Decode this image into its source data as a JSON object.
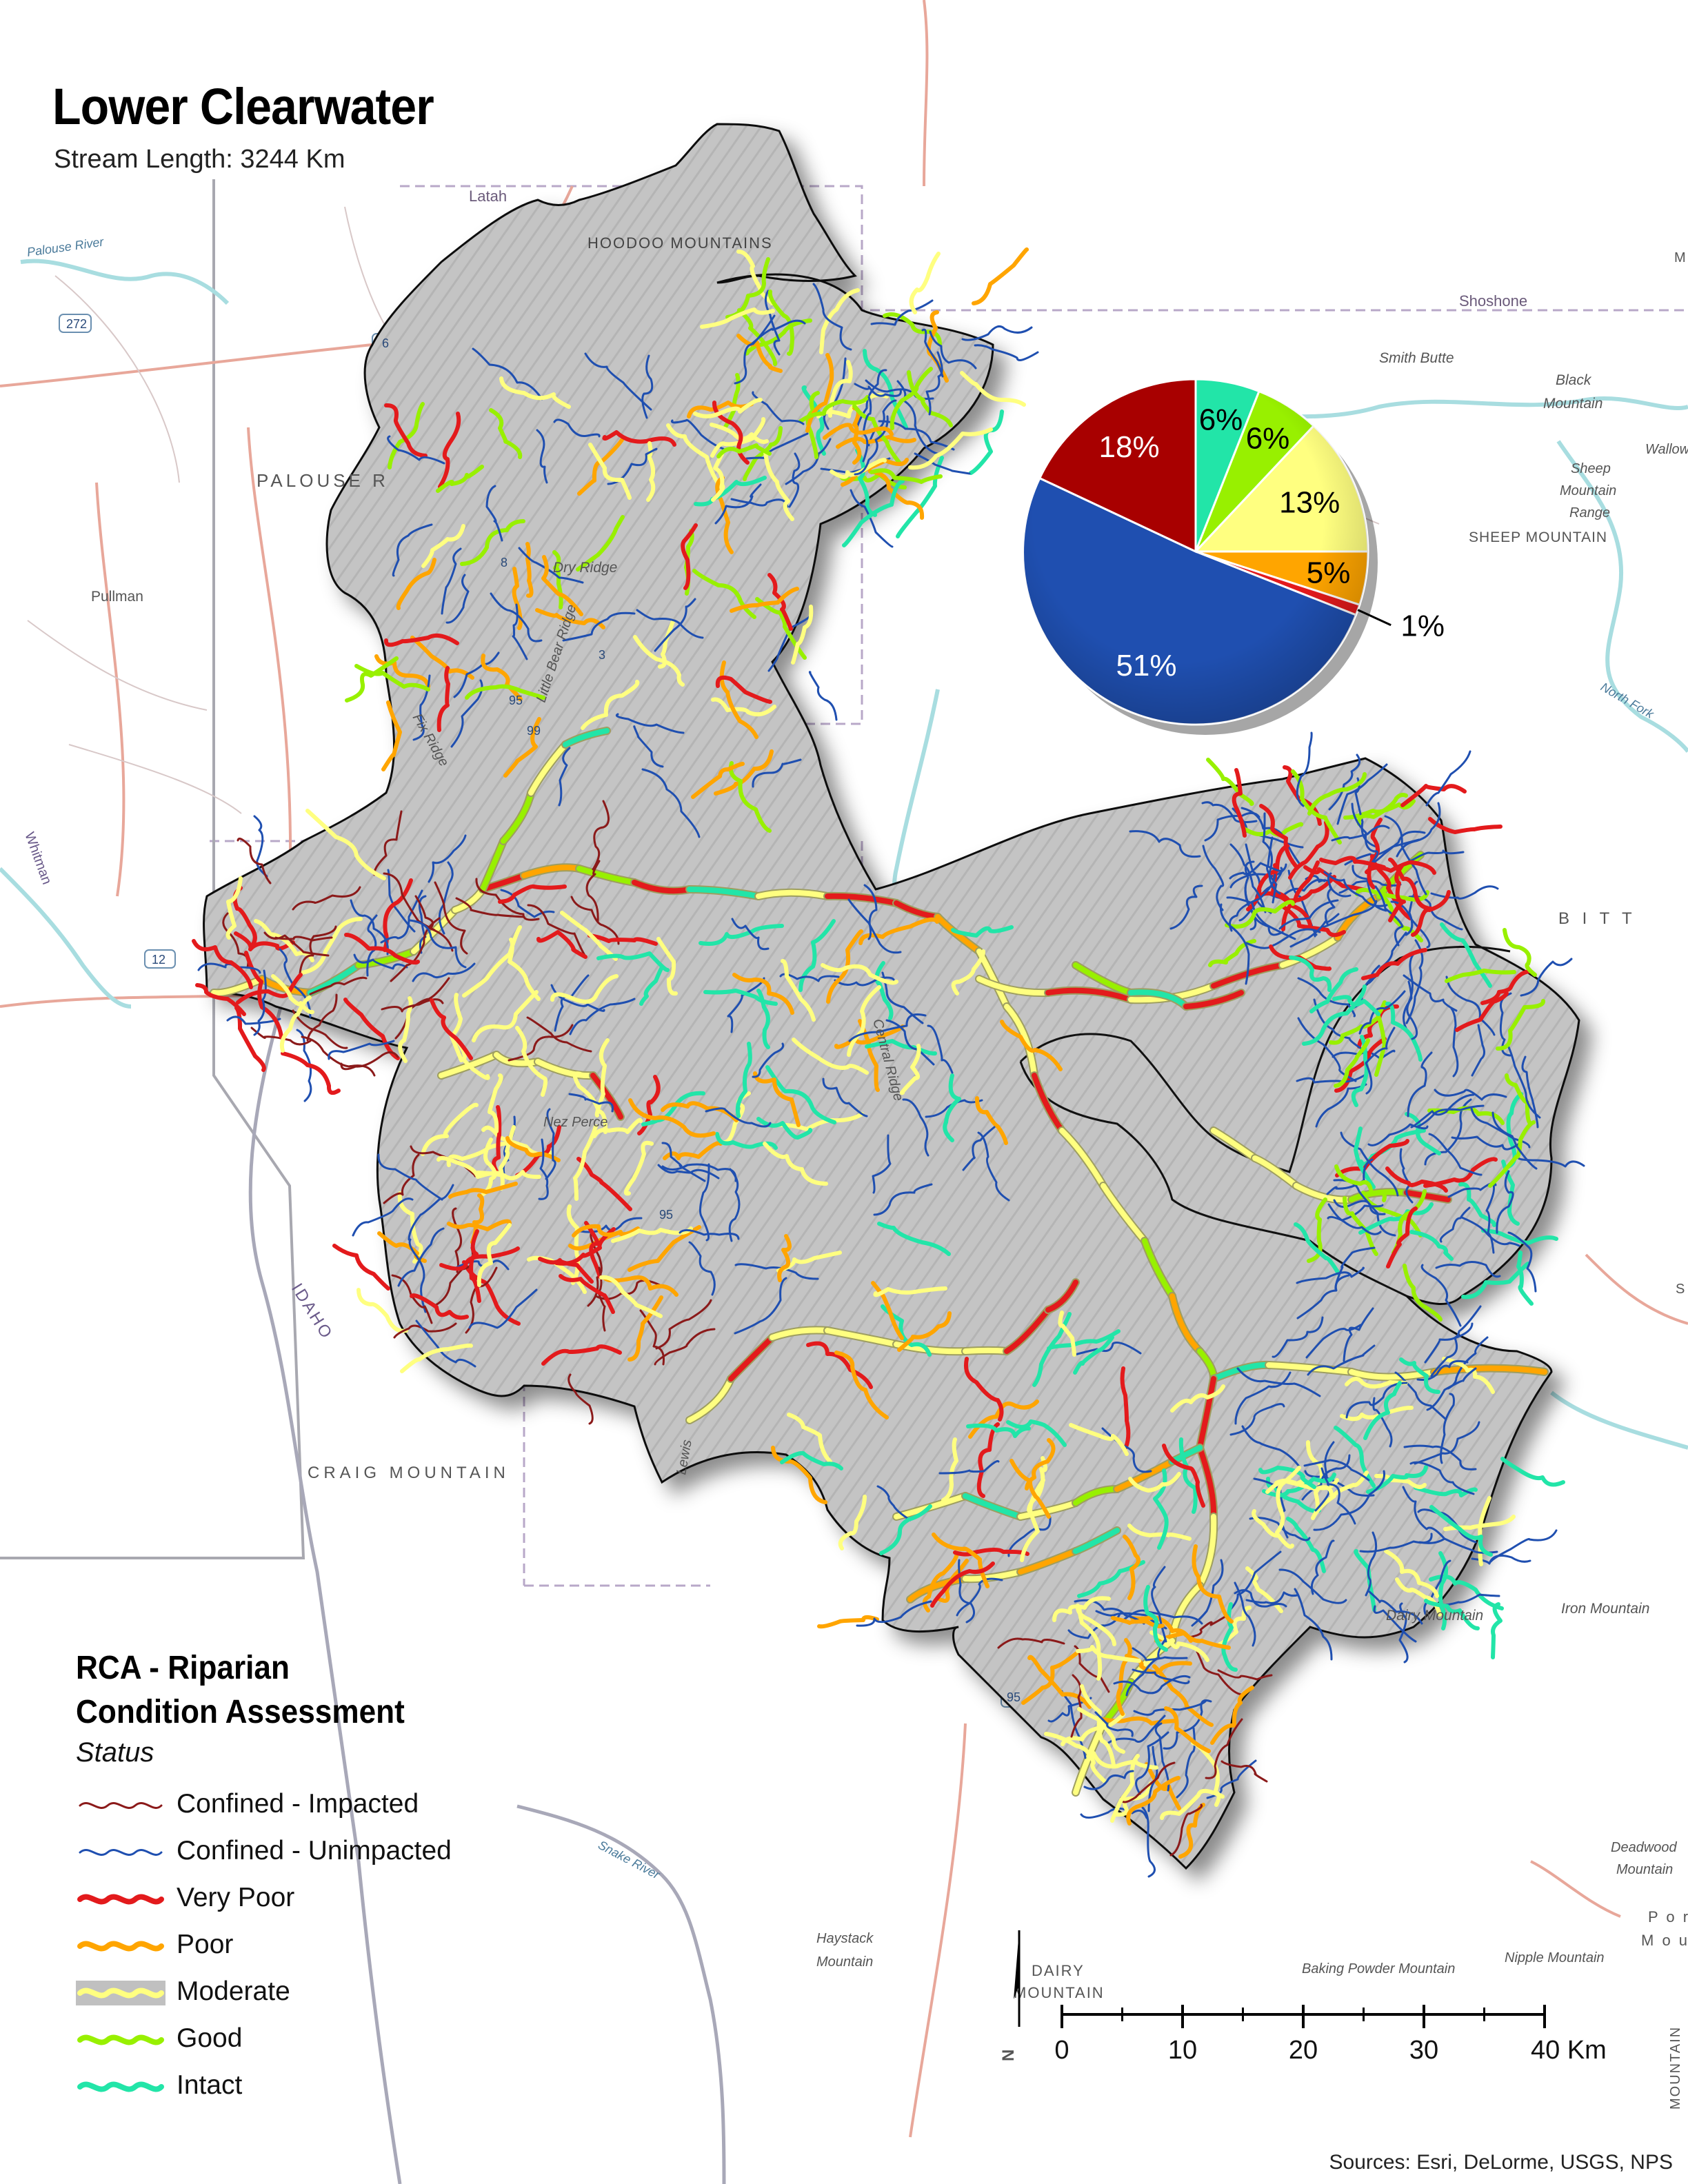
{
  "header": {
    "title": "Lower Clearwater",
    "subtitle": "Stream Length: 3244 Km"
  },
  "colors": {
    "confined_impacted": "#8b1a1a",
    "confined_unimpacted": "#1f4fb0",
    "very_poor": "#e31a1c",
    "poor": "#ffa500",
    "moderate": "#ffff80",
    "good": "#98f000",
    "intact": "#22e5a8",
    "terrain": "#c8c8c8",
    "river_blue": "#a8dde0",
    "road_red": "#e8a79a"
  },
  "map_labels": [
    {
      "id": "latah",
      "text": "Latah"
    },
    {
      "id": "hoodoo",
      "text": "HOODOO MOUNTAINS"
    },
    {
      "id": "shoshone",
      "text": "Shoshone"
    },
    {
      "id": "smith_butte",
      "text": "Smith Butte"
    },
    {
      "id": "black_mtn_1",
      "text": "Black"
    },
    {
      "id": "black_mtn_2",
      "text": "Mountain"
    },
    {
      "id": "sheep_1",
      "text": "Sheep"
    },
    {
      "id": "sheep_2",
      "text": "Mountain"
    },
    {
      "id": "sheep_3",
      "text": "Range"
    },
    {
      "id": "sheep_mtn",
      "text": "SHEEP MOUNTAIN"
    },
    {
      "id": "wallow",
      "text": "Wallow"
    },
    {
      "id": "palouse",
      "text": "PALOUSE R"
    },
    {
      "id": "palouse_river",
      "text": "Palouse River"
    },
    {
      "id": "pullman",
      "text": "Pullman"
    },
    {
      "id": "dry_ridge",
      "text": "Dry Ridge"
    },
    {
      "id": "little_bear",
      "text": "Little Bear Ridge"
    },
    {
      "id": "fix_ridge",
      "text": "Fix Ridge"
    },
    {
      "id": "whitman",
      "text": "Whitman"
    },
    {
      "id": "central_ridge",
      "text": "Central Ridge"
    },
    {
      "id": "nez_perce",
      "text": "Nez Perce"
    },
    {
      "id": "idaho",
      "text": "IDAHO"
    },
    {
      "id": "craig",
      "text": "CRAIG MOUNTAIN"
    },
    {
      "id": "lewis",
      "text": "Lewis"
    },
    {
      "id": "bitt",
      "text": "B I T T"
    },
    {
      "id": "north_fork",
      "text": "North Fork"
    },
    {
      "id": "iron_mtn",
      "text": "Iron Mountain"
    },
    {
      "id": "dairy_mtn",
      "text": "Dairy Mountain"
    },
    {
      "id": "snake_river",
      "text": "Snake River"
    },
    {
      "id": "haystack_1",
      "text": "Haystack"
    },
    {
      "id": "haystack_2",
      "text": "Mountain"
    },
    {
      "id": "dairy_1",
      "text": "DAIRY"
    },
    {
      "id": "dairy_2",
      "text": "MOUNTAIN"
    },
    {
      "id": "baking",
      "text": "Baking Powder Mountain"
    },
    {
      "id": "nipple",
      "text": "Nipple Mountain"
    },
    {
      "id": "deadwood_1",
      "text": "Deadwood"
    },
    {
      "id": "deadwood_2",
      "text": "Mountain"
    },
    {
      "id": "por",
      "text": "P o r"
    },
    {
      "id": "mou",
      "text": "M o u"
    },
    {
      "id": "mountain_v",
      "text": "MOUNTAIN"
    },
    {
      "id": "m_top",
      "text": "M"
    },
    {
      "id": "s_right",
      "text": "S"
    },
    {
      "id": "hwy_272",
      "text": "272"
    },
    {
      "id": "hwy_6",
      "text": "6"
    },
    {
      "id": "hwy_95a",
      "text": "95"
    },
    {
      "id": "hwy_95b",
      "text": "95"
    },
    {
      "id": "hwy_95c",
      "text": "95"
    },
    {
      "id": "hwy_12",
      "text": "12"
    },
    {
      "id": "hwy_3",
      "text": "3"
    },
    {
      "id": "hwy_99",
      "text": "99"
    },
    {
      "id": "hwy_8",
      "text": "8"
    }
  ],
  "chart_data": {
    "type": "pie",
    "slices": [
      {
        "label": "6%",
        "value": 6,
        "color": "#22e5a8"
      },
      {
        "label": "6%",
        "value": 6,
        "color": "#98f000"
      },
      {
        "label": "13%",
        "value": 13,
        "color": "#ffff80"
      },
      {
        "label": "5%",
        "value": 5,
        "color": "#ffa500"
      },
      {
        "label": "1%",
        "value": 1,
        "color": "#e31a1c"
      },
      {
        "label": "51%",
        "value": 51,
        "color": "#1f4fb0"
      },
      {
        "label": "18%",
        "value": 18,
        "color": "#a80000"
      }
    ]
  },
  "legend": {
    "title_line1": "RCA - Riparian",
    "title_line2": "Condition Assessment",
    "subtitle": "Status",
    "items": [
      {
        "label": "Confined - Impacted",
        "color": "#8b1a1a",
        "style": "thin"
      },
      {
        "label": "Confined - Unimpacted",
        "color": "#1f4fb0",
        "style": "thin"
      },
      {
        "label": "Very Poor",
        "color": "#e31a1c",
        "style": "thick"
      },
      {
        "label": "Poor",
        "color": "#ffa500",
        "style": "thick"
      },
      {
        "label": "Moderate",
        "color": "#ffff80",
        "style": "halo"
      },
      {
        "label": "Good",
        "color": "#98f000",
        "style": "thick"
      },
      {
        "label": "Intact",
        "color": "#22e5a8",
        "style": "thick"
      }
    ]
  },
  "scale_bar": {
    "ticks": [
      "0",
      "10",
      "20",
      "30",
      "40 Km"
    ],
    "north_label": "N"
  },
  "footer": {
    "sources": "Sources: Esri, DeLorme, USGS, NPS"
  }
}
